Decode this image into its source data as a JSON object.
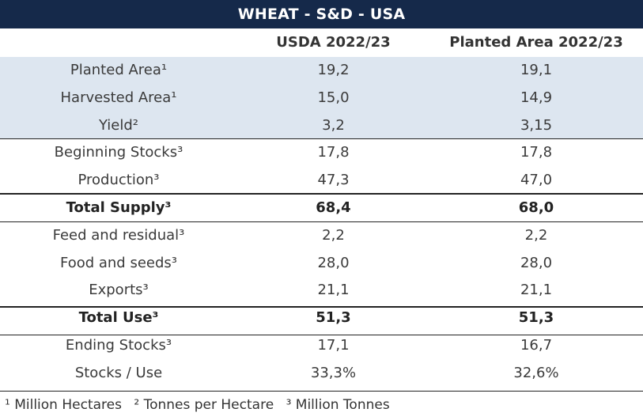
{
  "table": {
    "title": "WHEAT - S&D - USA",
    "columns": [
      "",
      "USDA 2022/23",
      "Planted Area 2022/23"
    ],
    "rows": [
      {
        "label": "Planted Area¹",
        "usda": "19,2",
        "planted": "19,1"
      },
      {
        "label": "Harvested Area¹",
        "usda": "15,0",
        "planted": "14,9"
      },
      {
        "label": "Yield²",
        "usda": "3,2",
        "planted": "3,15"
      },
      {
        "label": "Beginning Stocks³",
        "usda": "17,8",
        "planted": "17,8"
      },
      {
        "label": "Production³",
        "usda": "47,3",
        "planted": "47,0"
      },
      {
        "label": "Total Supply³",
        "usda": "68,4",
        "planted": "68,0"
      },
      {
        "label": "Feed and residual³",
        "usda": "2,2",
        "planted": "2,2"
      },
      {
        "label": "Food and seeds³",
        "usda": "28,0",
        "planted": "28,0"
      },
      {
        "label": "Exports³",
        "usda": "21,1",
        "planted": "21,1"
      },
      {
        "label": "Total Use³",
        "usda": "51,3",
        "planted": "51,3"
      },
      {
        "label": "Ending Stocks³",
        "usda": "17,1",
        "planted": "16,7"
      },
      {
        "label": "Stocks / Use",
        "usda": "33,3%",
        "planted": "32,6%"
      }
    ]
  },
  "footnotes": [
    "¹ Million Hectares",
    "² Tonnes per Hectare",
    "³ Million Tonnes"
  ],
  "colors": {
    "title_bg": "#15294a",
    "title_text": "#ffffff",
    "shaded_rows_bg": "#dde6f0",
    "rule": "#222222"
  }
}
